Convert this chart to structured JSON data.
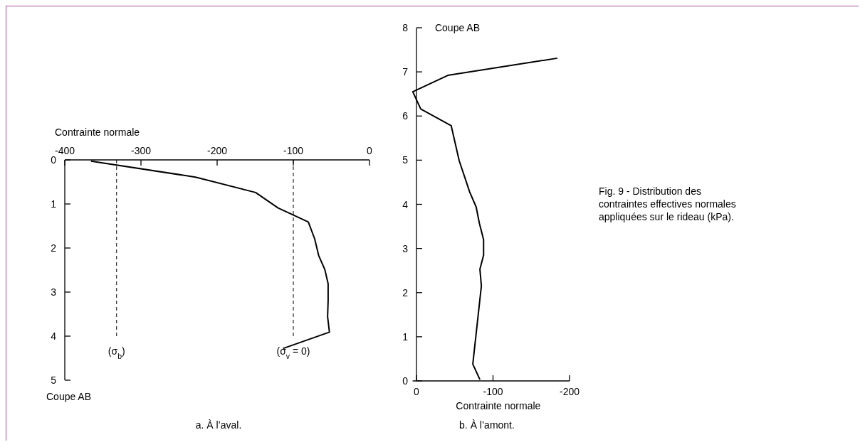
{
  "chart_data": [
    {
      "type": "line",
      "xlabel": "Contrainte normale",
      "ylabel": "Coupe AB",
      "xlim": [
        -400,
        0
      ],
      "xticks": [
        -400,
        -300,
        -200,
        -100,
        0
      ],
      "ylim": [
        5,
        0
      ],
      "yticks": [
        0,
        1,
        2,
        3,
        4,
        5
      ],
      "grid": false,
      "marker": "none",
      "line_style": "solid",
      "series": [
        {
          "color": "#000000",
          "x": [
            -365.6,
            -228.5,
            -149.5,
            -120,
            -80.3,
            -72,
            -66.7,
            -58.6,
            -54.3,
            -54.3,
            -55,
            -52.6,
            -113.5
          ],
          "values": [
            0.03,
            0.39,
            0.74,
            1.09,
            1.41,
            1.79,
            2.17,
            2.49,
            2.81,
            3.19,
            3.56,
            3.91,
            4.28
          ]
        }
      ],
      "ref_lines": [
        {
          "axis": "x",
          "value": -332,
          "line_style": "dashed",
          "color": "#000000"
        },
        {
          "axis": "x",
          "value": -100,
          "line_style": "dashed",
          "color": "#000000"
        }
      ],
      "annotations": [
        "a. À l’aval.",
        "(σ$_{b}$)",
        "(σ$_{v}$ = 0)"
      ]
    },
    {
      "type": "line",
      "xlabel": "Contrainte normale",
      "ylabel": "Coupe AB",
      "xlim": [
        5,
        -200
      ],
      "xticks": [
        0,
        -100,
        -200
      ],
      "ylim": [
        0,
        8
      ],
      "yticks": [
        0,
        1,
        2,
        3,
        4,
        5,
        6,
        7,
        8
      ],
      "grid": false,
      "marker": "none",
      "line_style": "solid",
      "series": [
        {
          "color": "#000000",
          "x": [
            -82.9,
            -73.6,
            -84.8,
            -82.9,
            -87.7,
            -87.7,
            -82.2,
            -78,
            -69.5,
            -55.8,
            -45.4,
            -5.6,
            4.8,
            -40.9,
            -184
          ],
          "values": [
            0.03,
            0.38,
            2.15,
            2.53,
            2.85,
            3.2,
            3.57,
            3.94,
            4.28,
            4.99,
            5.78,
            6.16,
            6.55,
            6.92,
            7.31
          ]
        }
      ],
      "annotations": [
        "b. À l’amont.",
        "Fig. 9 - Distribution des contraintes effectives normales appliquées sur le rideau (kPa)."
      ]
    }
  ]
}
